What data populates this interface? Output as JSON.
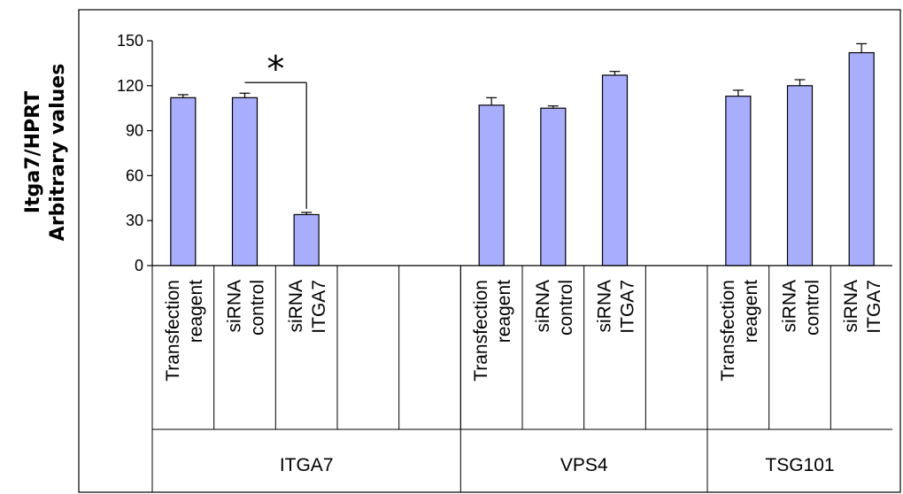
{
  "chart_data": {
    "type": "bar",
    "ylabel_lines": [
      "Itga7/HPRT",
      "Arbitrary values"
    ],
    "ylim": [
      0,
      150
    ],
    "yticks": [
      "0",
      "30",
      "60",
      "90",
      "120",
      "150"
    ],
    "bar_color": "#a9aefc",
    "groups": [
      {
        "label": "ITGA7",
        "categories": [
          {
            "lines": [
              "Transfection",
              "reagent"
            ],
            "value": 112,
            "error": 2
          },
          {
            "lines": [
              "siRNA",
              "control"
            ],
            "value": 112,
            "error": 3
          },
          {
            "lines": [
              "siRNA",
              "ITGA7"
            ],
            "value": 34,
            "error": 1.5
          },
          {
            "lines": [],
            "value": null,
            "error": null
          },
          {
            "lines": [],
            "value": null,
            "error": null
          }
        ]
      },
      {
        "label": "VPS4",
        "categories": [
          {
            "lines": [
              "Transfection",
              "reagent"
            ],
            "value": 107,
            "error": 5
          },
          {
            "lines": [
              "siRNA",
              "control"
            ],
            "value": 105,
            "error": 1.5
          },
          {
            "lines": [
              "siRNA",
              "ITGA7"
            ],
            "value": 127,
            "error": 2.5
          },
          {
            "lines": [],
            "value": null,
            "error": null
          }
        ]
      },
      {
        "label": "TSG101",
        "categories": [
          {
            "lines": [
              "Transfection",
              "reagent"
            ],
            "value": 113,
            "error": 4
          },
          {
            "lines": [
              "siRNA",
              "control"
            ],
            "value": 120,
            "error": 4
          },
          {
            "lines": [
              "siRNA",
              "ITGA7"
            ],
            "value": 142,
            "error": 6
          }
        ]
      }
    ],
    "significance": {
      "label": "*",
      "from_category": 1,
      "to_category": 2,
      "group": 0
    }
  }
}
